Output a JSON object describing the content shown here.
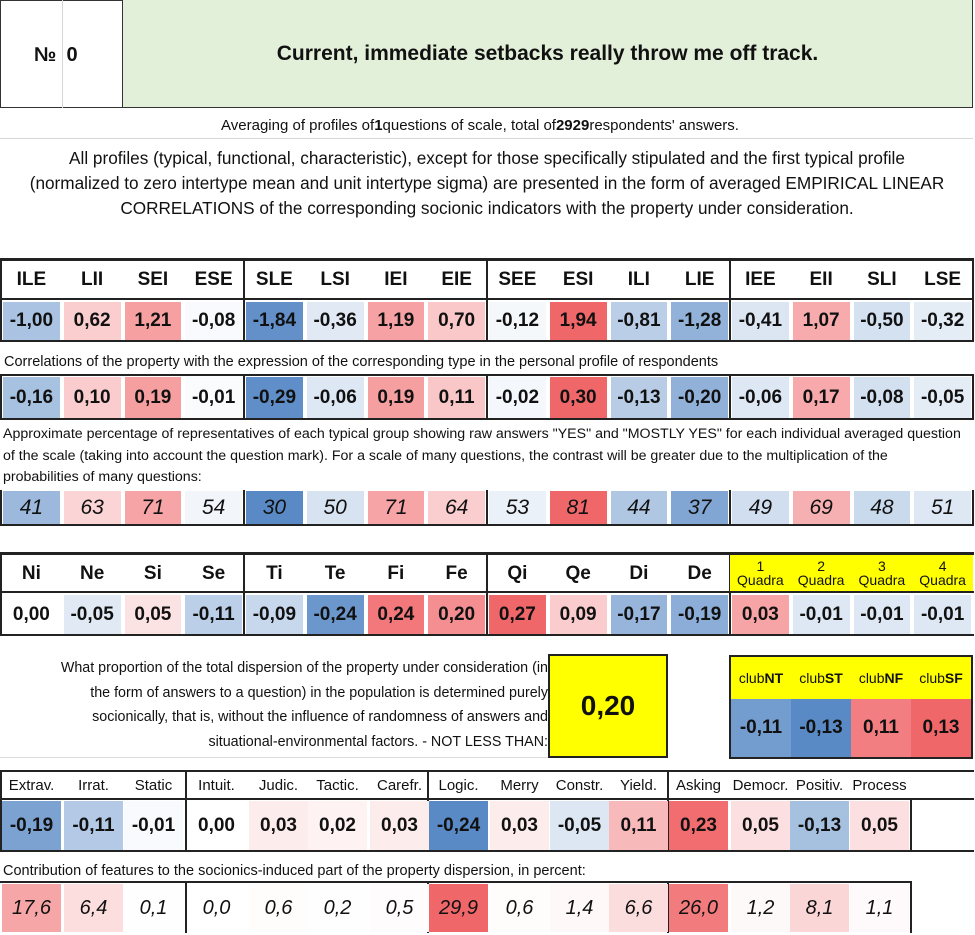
{
  "header": {
    "number_label": "№",
    "number_value": "0",
    "question": "Current, immediate setbacks really throw me off track."
  },
  "intro": {
    "averaging_parts": [
      "Averaging of profiles of ",
      "1",
      " questions of scale, total of ",
      "2929",
      " respondents' answers."
    ],
    "description": "All profiles (typical, functional, characteristic), except for those specifically stipulated and the first typical profile (normalized to zero intertype mean and unit intertype sigma) are presented in the form of averaged EMPIRICAL LINEAR CORRELATIONS of the corresponding socionic indicators with the property under consideration."
  },
  "types": {
    "headers": [
      "ILE",
      "LII",
      "SEI",
      "ESE",
      "SLE",
      "LSI",
      "IEI",
      "EIE",
      "SEE",
      "ESI",
      "ILI",
      "LIE",
      "IEE",
      "EII",
      "SLI",
      "LSE"
    ],
    "normalized": [
      "-1,00",
      "0,62",
      "1,21",
      "-0,08",
      "-1,84",
      "-0,36",
      "1,19",
      "0,70",
      "-0,12",
      "1,94",
      "-0,81",
      "-1,28",
      "-0,41",
      "1,07",
      "-0,50",
      "-0,32"
    ],
    "correlation_caption": "Correlations of the property with the expression of the corresponding type in the personal profile of respondents",
    "correlations": [
      "-0,16",
      "0,10",
      "0,19",
      "-0,01",
      "-0,29",
      "-0,06",
      "0,19",
      "0,11",
      "-0,02",
      "0,30",
      "-0,13",
      "-0,20",
      "-0,06",
      "0,17",
      "-0,08",
      "-0,05"
    ],
    "percent_caption": "Approximate percentage of representatives of each typical group showing raw answers \"YES\" and \"MOSTLY YES\" for each individual averaged question of the scale (taking into account the question mark). For a scale of many questions, the contrast will be greater due to the multiplication of the probabilities of many questions:",
    "percentages": [
      "41",
      "63",
      "71",
      "54",
      "30",
      "50",
      "71",
      "64",
      "53",
      "81",
      "44",
      "37",
      "49",
      "69",
      "48",
      "51"
    ]
  },
  "functions": {
    "headers": [
      "Ni",
      "Ne",
      "Si",
      "Se",
      "Ti",
      "Te",
      "Fi",
      "Fe",
      "Qi",
      "Qe",
      "Di",
      "De"
    ],
    "values": [
      "0,00",
      "-0,05",
      "0,05",
      "-0,11",
      "-0,09",
      "-0,24",
      "0,24",
      "0,20",
      "0,27",
      "0,09",
      "-0,17",
      "-0,19"
    ],
    "quadra_numbers": [
      "1",
      "2",
      "3",
      "4"
    ],
    "quadra_word": "Quadra",
    "quadra_values": [
      "0,03",
      "-0,01",
      "-0,01",
      "-0,01"
    ]
  },
  "dispersion": {
    "text": "What proportion of the total dispersion of the property under consideration (in the form of answers to a question) in the population is determined purely socionically, that is, without the influence of randomness of answers and situational-environmental factors. - NOT LESS THAN:",
    "value": "0,20"
  },
  "clubs": {
    "prefix": "club",
    "names": [
      "NT",
      "ST",
      "NF",
      "SF"
    ],
    "values": [
      "-0,11",
      "-0,13",
      "0,11",
      "0,13"
    ]
  },
  "traits": {
    "headers": [
      "Extrav.",
      "Irrat.",
      "Static",
      "Intuit.",
      "Judic.",
      "Tactic.",
      "Carefr.",
      "Logic.",
      "Merry",
      "Constr.",
      "Yield.",
      "Asking",
      "Democr.",
      "Positiv.",
      "Process"
    ],
    "values": [
      "-0,19",
      "-0,11",
      "-0,01",
      "0,00",
      "0,03",
      "0,02",
      "0,03",
      "-0,24",
      "0,03",
      "-0,05",
      "0,11",
      "0,23",
      "0,05",
      "-0,13",
      "0,05"
    ],
    "contribution_caption": "Contribution of features to the sociоnics-induced part of the property dispersion, in percent:",
    "contributions": [
      "17,6",
      "6,4",
      "0,1",
      "0,0",
      "0,6",
      "0,2",
      "0,5",
      "29,9",
      "0,6",
      "1,4",
      "6,6",
      "26,0",
      "1,2",
      "8,1",
      "1,1"
    ]
  },
  "colors": {
    "question_bg": "#e2efd9",
    "highlight_yellow": "#ffff00",
    "positive_max": "#f0676a",
    "negative_max": "#5a8ac6",
    "neutral": "#ffffff"
  }
}
